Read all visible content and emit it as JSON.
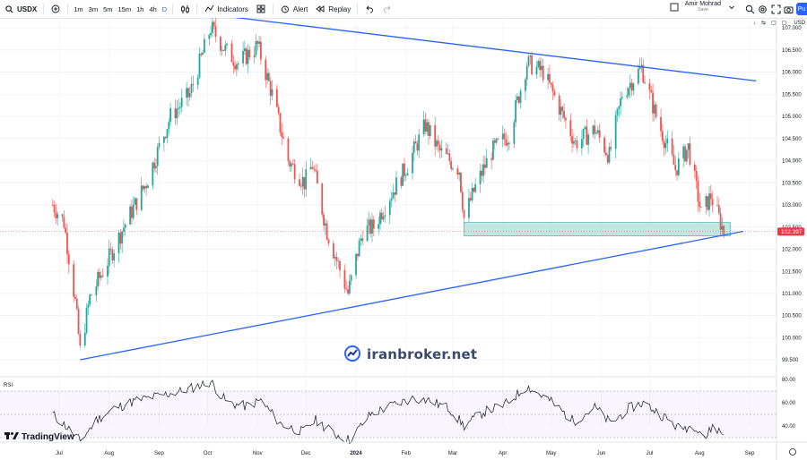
{
  "toolbar": {
    "symbol": "USDX",
    "timeframes": [
      "1m",
      "3m",
      "5m",
      "15m",
      "1h",
      "4h",
      "D"
    ],
    "active_timeframe": "D",
    "indicators_label": "Indicators",
    "alert_label": "Alert",
    "replay_label": "Replay",
    "user_name": "Amir Mohrad",
    "save_label": "Save",
    "publish_label": "Pu"
  },
  "scale_controls": {
    "currency": "USD"
  },
  "price_axis": {
    "ticks": [
      "107.000",
      "106.500",
      "106.000",
      "105.500",
      "105.000",
      "104.500",
      "104.000",
      "103.500",
      "103.000",
      "102.500",
      "102.000",
      "101.500",
      "101.000",
      "100.500",
      "100.000",
      "99.500"
    ],
    "last_price": "102.397",
    "last_price_color": "#f23645"
  },
  "time_axis": {
    "ticks": [
      "Jul",
      "Aug",
      "Sep",
      "Oct",
      "Nov",
      "Dec",
      "2024",
      "Feb",
      "Mar",
      "Apr",
      "May",
      "Jun",
      "Jul",
      "Aug",
      "Sep"
    ]
  },
  "rsi_pane": {
    "label": "RSI",
    "ticks": [
      "80.00",
      "60.00",
      "40.00"
    ]
  },
  "watermark": {
    "text": "iranbroker.net"
  },
  "branding": {
    "text": "TradingView"
  },
  "colors": {
    "up": "#26a69a",
    "down": "#ef5350",
    "trendline": "#2962ff",
    "zone": "#8fd3c7",
    "rsi_line": "#131722",
    "rsi_band": "#7e57c2"
  },
  "chart_data": {
    "type": "candlestick",
    "symbol": "USDX",
    "timeframe": "D",
    "ylim": [
      99.3,
      107.3
    ],
    "key_points": [
      {
        "date": "2023-07-14",
        "price": 99.6,
        "label": "low"
      },
      {
        "date": "2023-10-03",
        "price": 107.3,
        "label": "high"
      },
      {
        "date": "2023-12-27",
        "price": 100.6,
        "label": "low"
      },
      {
        "date": "2024-04-16",
        "price": 106.5,
        "label": "high"
      },
      {
        "date": "2024-06-26",
        "price": 106.1,
        "label": "high"
      },
      {
        "date": "2024-08-16",
        "price": 102.4,
        "label": "last"
      }
    ],
    "close_path": [
      [
        "2023-06-27",
        103.0
      ],
      [
        "2023-07-04",
        102.6
      ],
      [
        "2023-07-11",
        100.8
      ],
      [
        "2023-07-14",
        99.7
      ],
      [
        "2023-07-20",
        100.9
      ],
      [
        "2023-08-01",
        101.8
      ],
      [
        "2023-08-10",
        102.5
      ],
      [
        "2023-08-24",
        103.5
      ],
      [
        "2023-09-08",
        105.0
      ],
      [
        "2023-09-20",
        105.5
      ],
      [
        "2023-10-03",
        107.0
      ],
      [
        "2023-10-12",
        106.5
      ],
      [
        "2023-10-20",
        106.2
      ],
      [
        "2023-11-01",
        106.6
      ],
      [
        "2023-11-10",
        105.5
      ],
      [
        "2023-11-20",
        104.0
      ],
      [
        "2023-11-30",
        103.5
      ],
      [
        "2023-12-05",
        103.9
      ],
      [
        "2023-12-14",
        102.4
      ],
      [
        "2023-12-27",
        101.0
      ],
      [
        "2024-01-05",
        102.4
      ],
      [
        "2024-01-12",
        102.5
      ],
      [
        "2024-01-22",
        103.2
      ],
      [
        "2024-02-02",
        103.9
      ],
      [
        "2024-02-13",
        104.8
      ],
      [
        "2024-02-22",
        104.2
      ],
      [
        "2024-03-05",
        103.8
      ],
      [
        "2024-03-08",
        102.7
      ],
      [
        "2024-03-15",
        103.4
      ],
      [
        "2024-03-25",
        104.2
      ],
      [
        "2024-04-05",
        104.6
      ],
      [
        "2024-04-16",
        106.2
      ],
      [
        "2024-04-26",
        106.0
      ],
      [
        "2024-05-06",
        105.2
      ],
      [
        "2024-05-16",
        104.4
      ],
      [
        "2024-05-28",
        104.7
      ],
      [
        "2024-06-06",
        104.1
      ],
      [
        "2024-06-14",
        105.5
      ],
      [
        "2024-06-26",
        106.1
      ],
      [
        "2024-07-05",
        105.0
      ],
      [
        "2024-07-17",
        103.8
      ],
      [
        "2024-07-25",
        104.3
      ],
      [
        "2024-08-02",
        102.8
      ],
      [
        "2024-08-08",
        103.2
      ],
      [
        "2024-08-16",
        102.4
      ]
    ],
    "trendlines": [
      {
        "name": "resistance",
        "from": [
          "2023-10-03",
          107.3
        ],
        "to": [
          "2024-09-05",
          105.8
        ]
      },
      {
        "name": "support",
        "from": [
          "2023-07-14",
          99.5
        ],
        "to": [
          "2024-08-28",
          102.4
        ]
      }
    ],
    "zones": [
      {
        "from": "2024-03-08",
        "to": "2024-08-20",
        "price_top": 102.6,
        "price_bottom": 102.3
      }
    ],
    "rsi": {
      "levels": [
        70,
        50,
        30
      ],
      "ylim": [
        20,
        82
      ],
      "series": [
        [
          "2023-06-27",
          50
        ],
        [
          "2023-07-05",
          40
        ],
        [
          "2023-07-14",
          27
        ],
        [
          "2023-07-24",
          45
        ],
        [
          "2023-08-04",
          55
        ],
        [
          "2023-08-18",
          62
        ],
        [
          "2023-09-01",
          66
        ],
        [
          "2023-09-15",
          70
        ],
        [
          "2023-10-03",
          78
        ],
        [
          "2023-10-13",
          60
        ],
        [
          "2023-10-25",
          57
        ],
        [
          "2023-11-03",
          62
        ],
        [
          "2023-11-15",
          42
        ],
        [
          "2023-11-29",
          35
        ],
        [
          "2023-12-07",
          45
        ],
        [
          "2023-12-19",
          33
        ],
        [
          "2023-12-28",
          28
        ],
        [
          "2024-01-10",
          50
        ],
        [
          "2024-01-24",
          58
        ],
        [
          "2024-02-06",
          64
        ],
        [
          "2024-02-15",
          62
        ],
        [
          "2024-02-28",
          55
        ],
        [
          "2024-03-08",
          40
        ],
        [
          "2024-03-20",
          52
        ],
        [
          "2024-04-02",
          58
        ],
        [
          "2024-04-16",
          74
        ],
        [
          "2024-04-30",
          62
        ],
        [
          "2024-05-15",
          44
        ],
        [
          "2024-05-28",
          56
        ],
        [
          "2024-06-07",
          42
        ],
        [
          "2024-06-18",
          55
        ],
        [
          "2024-06-27",
          60
        ],
        [
          "2024-07-10",
          48
        ],
        [
          "2024-07-19",
          38
        ],
        [
          "2024-07-30",
          40
        ],
        [
          "2024-08-05",
          30
        ],
        [
          "2024-08-09",
          40
        ],
        [
          "2024-08-16",
          33
        ]
      ]
    }
  }
}
